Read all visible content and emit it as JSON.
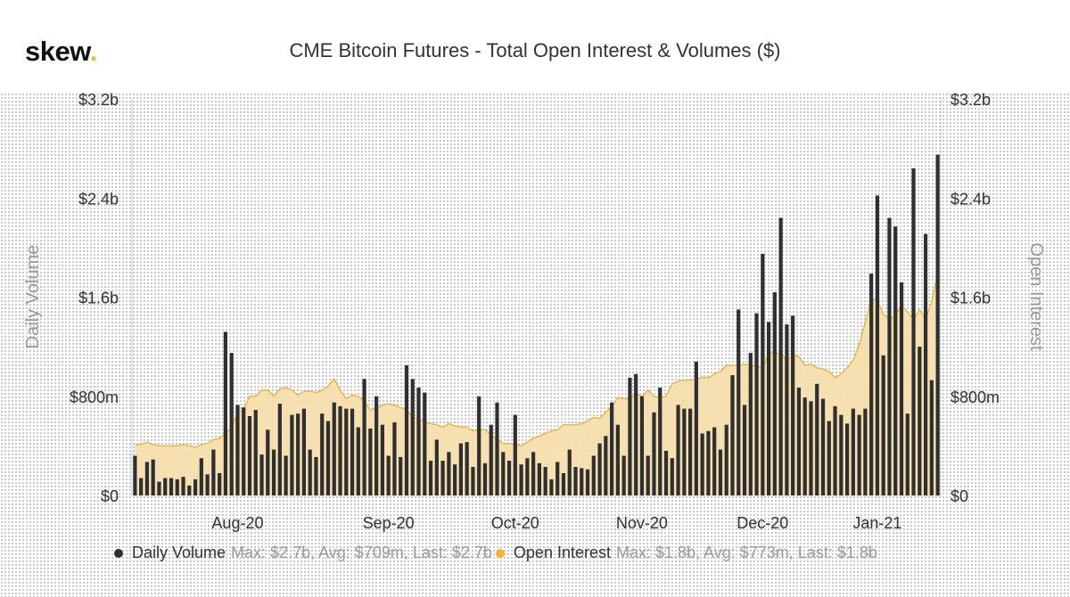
{
  "header": {
    "logo_text": "skew",
    "logo_dot": ".",
    "title": "CME Bitcoin Futures - Total Open Interest & Volumes ($)"
  },
  "legend": {
    "volume_name": "Daily Volume",
    "volume_stats": "Max: $2.7b, Avg: $709m, Last: $2.7b",
    "oi_name": "Open Interest",
    "oi_stats": "Max: $1.8b, Avg: $773m, Last: $1.8b"
  },
  "colors": {
    "volume": "#2f2f2f",
    "open_interest_fill": "#f6deab",
    "open_interest_line": "#e8b84e",
    "accent": "#f2b533"
  },
  "chart_data": {
    "type": "bar",
    "title": "CME Bitcoin Futures - Total Open Interest & Volumes ($)",
    "ylabel_left": "Daily Volume",
    "ylabel_right": "Open Interest",
    "ylim": [
      0,
      3.2
    ],
    "units": "$b",
    "y_ticks": [
      "$0",
      "$800m",
      "$1.6b",
      "$2.4b",
      "$3.2b"
    ],
    "y_tick_values": [
      0,
      0.8,
      1.6,
      2.4,
      3.2
    ],
    "x_ticks": [
      "Aug-20",
      "Sep-20",
      "Oct-20",
      "Nov-20",
      "Dec-20",
      "Jan-21"
    ],
    "x_tick_indices": [
      17,
      42,
      63,
      84,
      104,
      123
    ],
    "grid": false,
    "legend_position": "bottom",
    "series": [
      {
        "name": "Daily Volume",
        "type": "bar",
        "values": [
          0.32,
          0.14,
          0.27,
          0.29,
          0.11,
          0.14,
          0.14,
          0.13,
          0.15,
          0.08,
          0.13,
          0.3,
          0.17,
          0.37,
          0.18,
          1.32,
          1.15,
          0.73,
          0.71,
          0.64,
          0.69,
          0.33,
          0.53,
          0.37,
          0.74,
          0.32,
          0.65,
          0.66,
          0.7,
          0.37,
          0.31,
          0.66,
          0.6,
          0.75,
          0.72,
          0.7,
          0.7,
          0.55,
          0.94,
          0.54,
          0.8,
          0.57,
          0.32,
          0.59,
          0.31,
          1.05,
          0.94,
          0.87,
          0.83,
          0.28,
          0.45,
          0.28,
          0.35,
          0.25,
          0.42,
          0.43,
          0.23,
          0.8,
          0.26,
          0.57,
          0.75,
          0.35,
          0.28,
          0.65,
          0.25,
          0.3,
          0.35,
          0.26,
          0.23,
          0.13,
          0.27,
          0.18,
          0.37,
          0.23,
          0.22,
          0.21,
          0.32,
          0.42,
          0.48,
          0.75,
          0.57,
          0.32,
          0.95,
          0.98,
          0.8,
          0.32,
          0.67,
          0.87,
          0.36,
          0.3,
          0.73,
          0.7,
          0.7,
          1.08,
          0.5,
          0.52,
          0.55,
          0.37,
          0.57,
          0.97,
          1.5,
          0.73,
          1.15,
          1.47,
          1.95,
          1.4,
          1.64,
          2.24,
          1.38,
          1.45,
          0.87,
          0.79,
          0.76,
          0.9,
          0.78,
          0.6,
          0.72,
          0.65,
          0.58,
          0.7,
          0.65,
          0.7,
          1.79,
          2.42,
          1.13,
          2.24,
          2.17,
          1.72,
          0.66,
          2.64,
          1.2,
          2.11,
          0.93,
          2.75
        ],
        "last": 2.7
      },
      {
        "name": "Open Interest",
        "type": "area",
        "values": [
          0.41,
          0.41,
          0.43,
          0.41,
          0.4,
          0.4,
          0.4,
          0.4,
          0.41,
          0.4,
          0.39,
          0.41,
          0.42,
          0.45,
          0.46,
          0.5,
          0.55,
          0.66,
          0.7,
          0.8,
          0.8,
          0.85,
          0.85,
          0.8,
          0.86,
          0.87,
          0.85,
          0.81,
          0.84,
          0.84,
          0.83,
          0.85,
          0.88,
          0.94,
          0.85,
          0.78,
          0.81,
          0.8,
          0.76,
          0.69,
          0.7,
          0.73,
          0.74,
          0.73,
          0.71,
          0.69,
          0.63,
          0.62,
          0.59,
          0.58,
          0.57,
          0.55,
          0.58,
          0.56,
          0.55,
          0.55,
          0.52,
          0.53,
          0.53,
          0.49,
          0.45,
          0.42,
          0.42,
          0.41,
          0.4,
          0.43,
          0.46,
          0.48,
          0.5,
          0.52,
          0.53,
          0.57,
          0.57,
          0.57,
          0.58,
          0.6,
          0.63,
          0.62,
          0.67,
          0.72,
          0.79,
          0.78,
          0.78,
          0.82,
          0.8,
          0.85,
          0.8,
          0.79,
          0.8,
          0.9,
          0.92,
          0.93,
          0.93,
          0.94,
          0.95,
          0.95,
          0.98,
          1.0,
          1.05,
          1.05,
          1.05,
          1.06,
          1.05,
          1.05,
          1.02,
          1.15,
          1.15,
          1.14,
          1.09,
          1.13,
          1.12,
          1.05,
          1.06,
          1.03,
          1.02,
          1.0,
          0.95,
          0.98,
          1.03,
          1.09,
          1.22,
          1.4,
          1.58,
          1.58,
          1.46,
          1.42,
          1.45,
          1.54,
          1.48,
          1.42,
          1.5,
          1.42,
          1.56,
          1.8
        ],
        "last": 1.8
      }
    ]
  }
}
